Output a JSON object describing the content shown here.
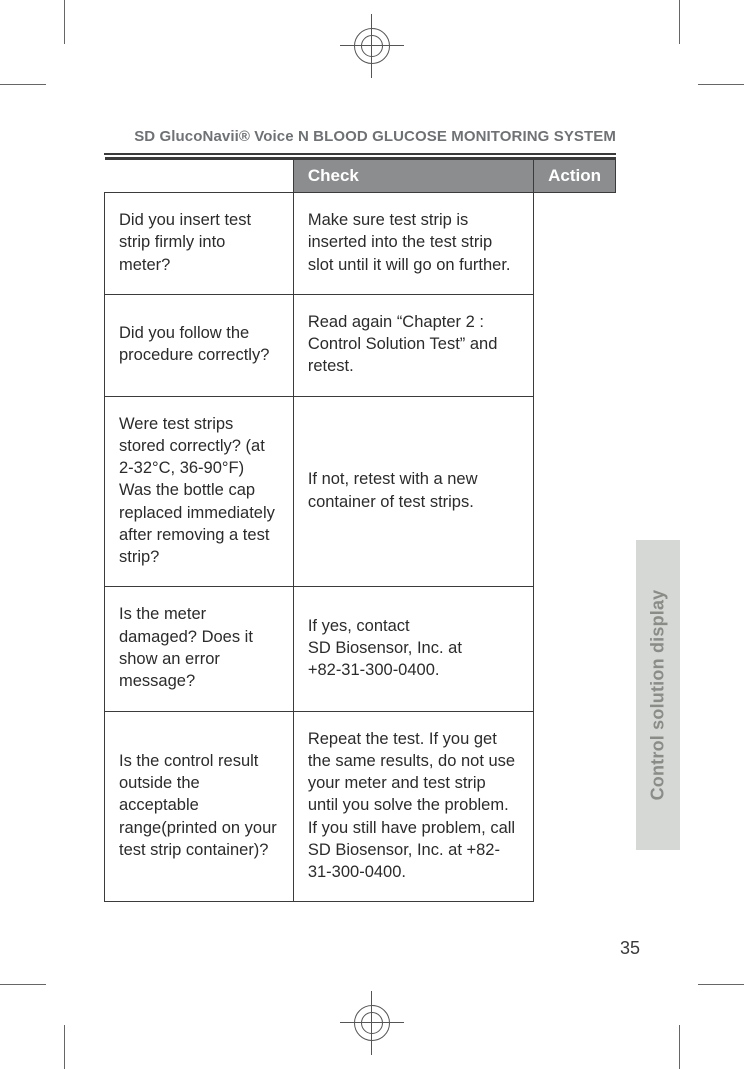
{
  "running_head": "SD GlucoNavii® Voice N BLOOD GLUCOSE MONITORING SYSTEM",
  "table": {
    "columns": [
      "Check",
      "Action"
    ],
    "col_widths_pct": [
      42,
      58
    ],
    "header_bg": "#8c8d8f",
    "header_fg": "#ffffff",
    "border_color": "#3b3b3b",
    "cell_font_size_pt": 12,
    "header_font_size_pt": 13,
    "rows": [
      {
        "check": "Did you insert test strip firmly into meter?",
        "action": "Make sure test strip is inserted into the test strip slot until it will go on further."
      },
      {
        "check": "Did you follow the procedure correctly?",
        "action": "Read again “Chapter 2 : Control Solution Test”  and retest."
      },
      {
        "check": "Were test strips stored correctly? (at 2-32°C, 36-90°F) Was the bottle cap replaced immediately after removing a test strip?",
        "action": "If not, retest with a new container of test strips."
      },
      {
        "check": "Is the meter damaged? Does it show an error message?",
        "action": "If yes, contact\nSD Biosensor, Inc. at\n+82-31-300-0400."
      },
      {
        "check": "Is the control result outside the acceptable range(printed on your test strip container)?",
        "action": "Repeat the test. If you get the same results, do not use your meter and test strip until you solve the problem. If you still have problem, call SD Biosensor, Inc. at +82-31-300-0400."
      }
    ]
  },
  "side_tab": {
    "label": "Control solution display",
    "bg": "#d6d8d5",
    "fg": "#8a8c88"
  },
  "page_number": "35",
  "colors": {
    "text": "#2b2b2b",
    "muted": "#6f7275",
    "background": "#ffffff"
  }
}
